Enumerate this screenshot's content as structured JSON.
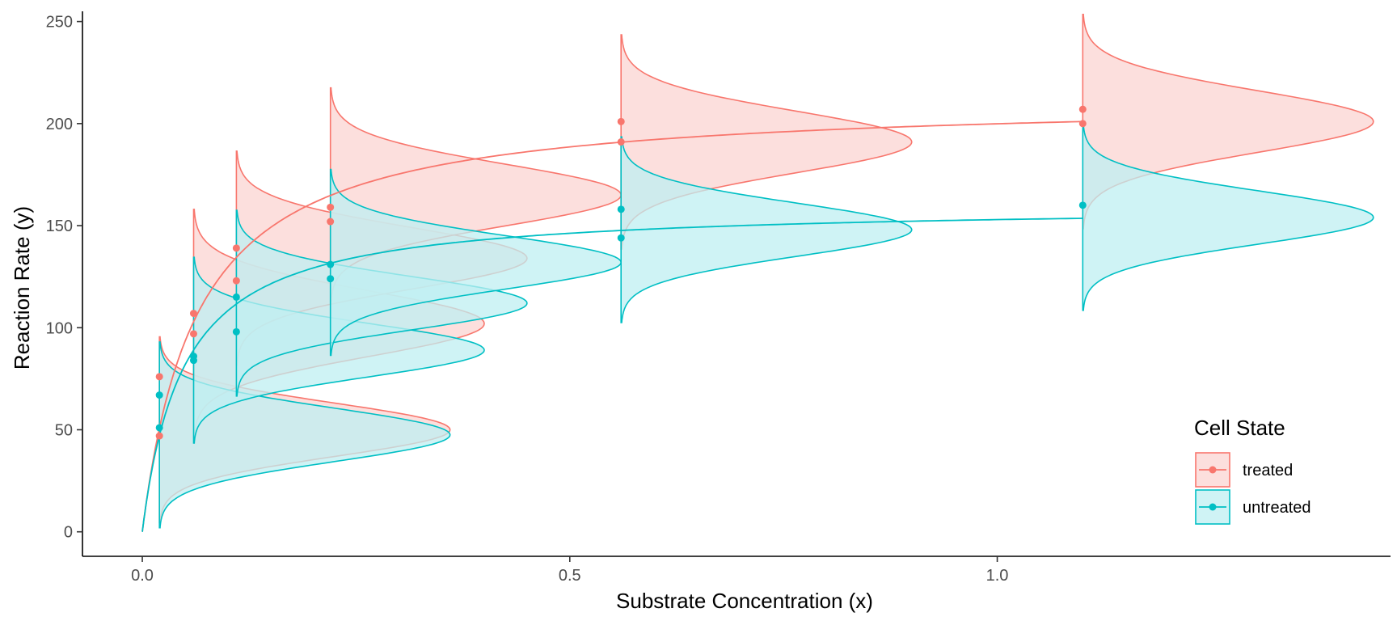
{
  "chart_data": {
    "type": "scatter",
    "title": "",
    "xlabel": "Substrate Concentration (x)",
    "ylabel": "Reaction Rate (y)",
    "xlim": [
      -0.07,
      1.46
    ],
    "ylim": [
      -12,
      255
    ],
    "x_ticks": [
      0.0,
      0.5,
      1.0
    ],
    "x_tick_labels": [
      "0.0",
      "0.5",
      "1.0"
    ],
    "y_ticks": [
      0,
      50,
      100,
      150,
      200,
      250
    ],
    "y_tick_labels": [
      "0",
      "50",
      "100",
      "150",
      "200",
      "250"
    ],
    "grid": false,
    "legend": {
      "title": "Cell State",
      "position": "bottom-right"
    },
    "series": [
      {
        "name": "treated",
        "color": "#F8766D",
        "fill": "#FBD4D2",
        "points": [
          [
            0.02,
            76
          ],
          [
            0.02,
            47
          ],
          [
            0.06,
            107
          ],
          [
            0.06,
            97
          ],
          [
            0.11,
            139
          ],
          [
            0.11,
            123
          ],
          [
            0.22,
            159
          ],
          [
            0.22,
            152
          ],
          [
            0.56,
            201
          ],
          [
            0.56,
            191
          ],
          [
            1.1,
            207
          ],
          [
            1.1,
            200
          ]
        ],
        "fit": {
          "model": "michaelis-menten",
          "Vmax": 212.7,
          "Km": 0.064
        },
        "densities": [
          {
            "x": 0.02,
            "mean": 50.0,
            "sd": 13
          },
          {
            "x": 0.06,
            "mean": 102.0,
            "sd": 16
          },
          {
            "x": 0.11,
            "mean": 134.0,
            "sd": 15
          },
          {
            "x": 0.22,
            "mean": 165.0,
            "sd": 15
          },
          {
            "x": 0.56,
            "mean": 191.0,
            "sd": 15
          },
          {
            "x": 1.1,
            "mean": 201.0,
            "sd": 15
          }
        ]
      },
      {
        "name": "untreated",
        "color": "#00BFC4",
        "fill": "#BFEFF1",
        "points": [
          [
            0.02,
            67
          ],
          [
            0.02,
            51
          ],
          [
            0.06,
            86
          ],
          [
            0.06,
            84
          ],
          [
            0.11,
            115
          ],
          [
            0.11,
            98
          ],
          [
            0.22,
            131
          ],
          [
            0.22,
            124
          ],
          [
            0.56,
            158
          ],
          [
            0.56,
            144
          ],
          [
            1.1,
            160
          ]
        ],
        "fit": {
          "model": "michaelis-menten",
          "Vmax": 160.3,
          "Km": 0.048
        },
        "densities": [
          {
            "x": 0.02,
            "mean": 47.5,
            "sd": 13
          },
          {
            "x": 0.06,
            "mean": 89.0,
            "sd": 13
          },
          {
            "x": 0.11,
            "mean": 112.0,
            "sd": 13
          },
          {
            "x": 0.22,
            "mean": 132.0,
            "sd": 13
          },
          {
            "x": 0.56,
            "mean": 148.0,
            "sd": 13
          },
          {
            "x": 1.1,
            "mean": 154.0,
            "sd": 13
          }
        ]
      }
    ]
  }
}
